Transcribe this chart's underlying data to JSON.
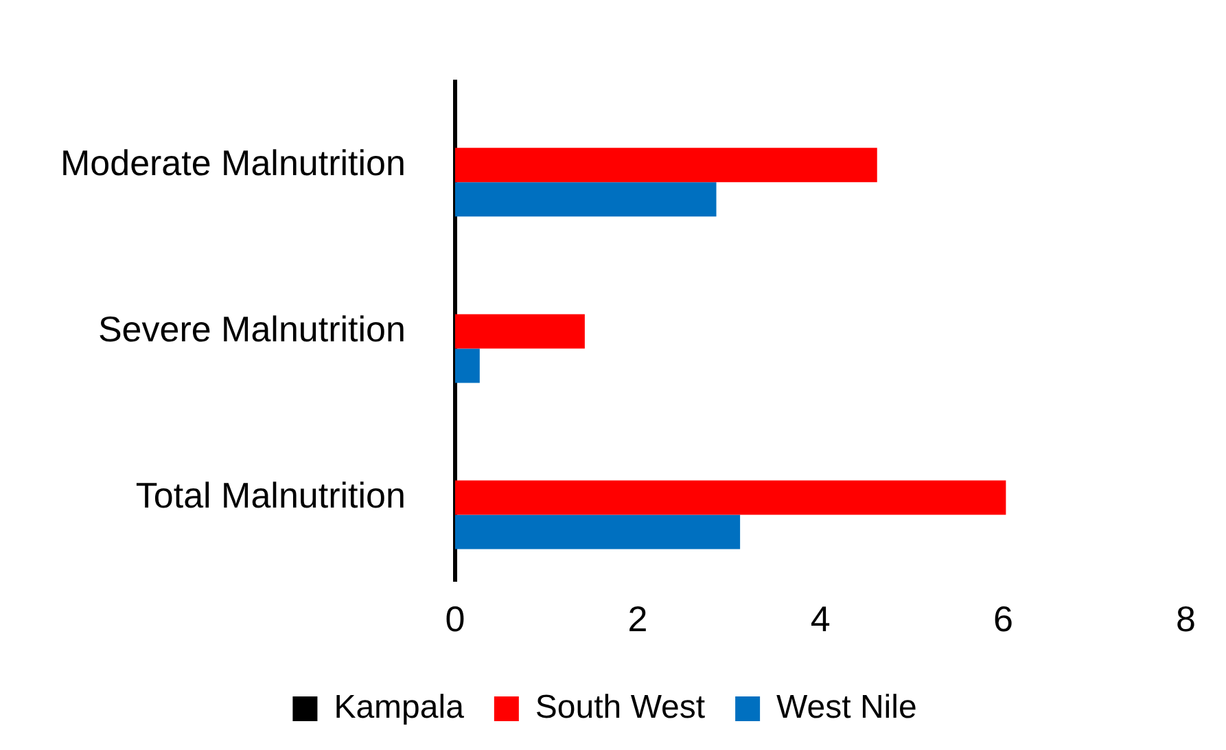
{
  "chart_data": {
    "type": "bar",
    "orientation": "horizontal",
    "categories": [
      "Moderate Malnutrition",
      "Severe Malnutrition",
      "Total Malnutrition"
    ],
    "series": [
      {
        "name": "Kampala",
        "color": "#000000",
        "values": [
          0,
          0,
          0
        ]
      },
      {
        "name": "South West",
        "color": "#ff0000",
        "values": [
          4.62,
          1.42,
          6.03
        ]
      },
      {
        "name": "West Nile",
        "color": "#0070c0",
        "values": [
          2.86,
          0.27,
          3.12
        ]
      }
    ],
    "xlim": [
      0,
      8
    ],
    "xticks": [
      0,
      2,
      4,
      6,
      8
    ],
    "grid": false,
    "legend": "bottom"
  }
}
